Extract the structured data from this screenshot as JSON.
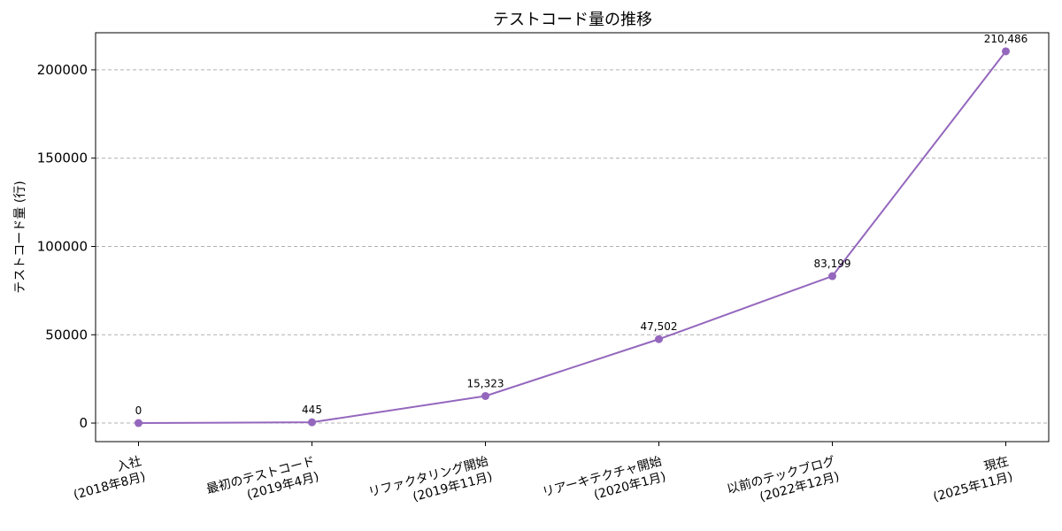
{
  "chart_data": {
    "type": "line",
    "title": "テストコード量の推移",
    "xlabel": "",
    "ylabel": "テストコード量 (行)",
    "ylim": [
      -10500,
      221000
    ],
    "yticks": [
      0,
      50000,
      100000,
      150000,
      200000
    ],
    "grid": "y-dashed",
    "legend": "none",
    "color": "#9467bd",
    "categories": [
      [
        "入社",
        "(2018年8月)"
      ],
      [
        "最初のテストコード",
        "(2019年4月)"
      ],
      [
        "リファクタリング開始",
        "(2019年11月)"
      ],
      [
        "リアーキテクチャ開始",
        "(2020年1月)"
      ],
      [
        "以前のテックブログ",
        "(2022年12月)"
      ],
      [
        "現在",
        "(2025年11月)"
      ]
    ],
    "values": [
      0,
      445,
      15323,
      47502,
      83199,
      210486
    ],
    "data_labels": [
      "0",
      "445",
      "15,323",
      "47,502",
      "83,199",
      "210,486"
    ]
  }
}
